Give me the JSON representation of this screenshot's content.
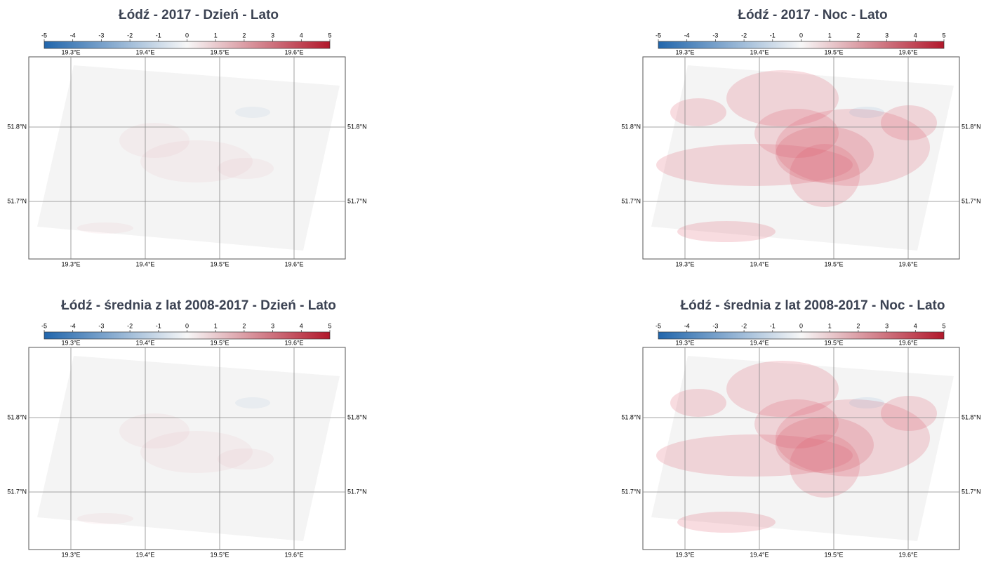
{
  "panels": [
    {
      "title": "Łódź - 2017 - Dzień - Lato",
      "colorbar_ticks": [
        -5,
        -4,
        -3,
        -2,
        -1,
        0,
        1,
        2,
        3,
        4,
        5
      ],
      "lon_labels": [
        "19.3°E",
        "19.4°E",
        "19.5°E",
        "19.6°E"
      ],
      "lat_labels": [
        "51.8°N",
        "51.7°N"
      ]
    },
    {
      "title": "Łódź - 2017 - Noc - Lato",
      "colorbar_ticks": [
        -5,
        -4,
        -3,
        -2,
        -1,
        0,
        1,
        2,
        3,
        4,
        5
      ],
      "lon_labels": [
        "19.3°E",
        "19.4°E",
        "19.5°E",
        "19.6°E"
      ],
      "lat_labels": [
        "51.8°N",
        "51.7°N"
      ]
    },
    {
      "title": "Łódź - średnia z lat 2008-2017 - Dzień - Lato",
      "colorbar_ticks": [
        -5,
        -4,
        -3,
        -2,
        -1,
        0,
        1,
        2,
        3,
        4,
        5
      ],
      "lon_labels": [
        "19.3°E",
        "19.4°E",
        "19.5°E",
        "19.6°E"
      ],
      "lat_labels": [
        "51.8°N",
        "51.7°N"
      ]
    },
    {
      "title": "Łódź - średnia z lat 2008-2017 - Noc - Lato",
      "colorbar_ticks": [
        -5,
        -4,
        -3,
        -2,
        -1,
        0,
        1,
        2,
        3,
        4,
        5
      ],
      "lon_labels": [
        "19.3°E",
        "19.4°E",
        "19.5°E",
        "19.6°E"
      ],
      "lat_labels": [
        "51.8°N",
        "51.7°N"
      ]
    }
  ],
  "colormap": [
    "#2166ac",
    "#f7f7f7",
    "#b2182b"
  ]
}
